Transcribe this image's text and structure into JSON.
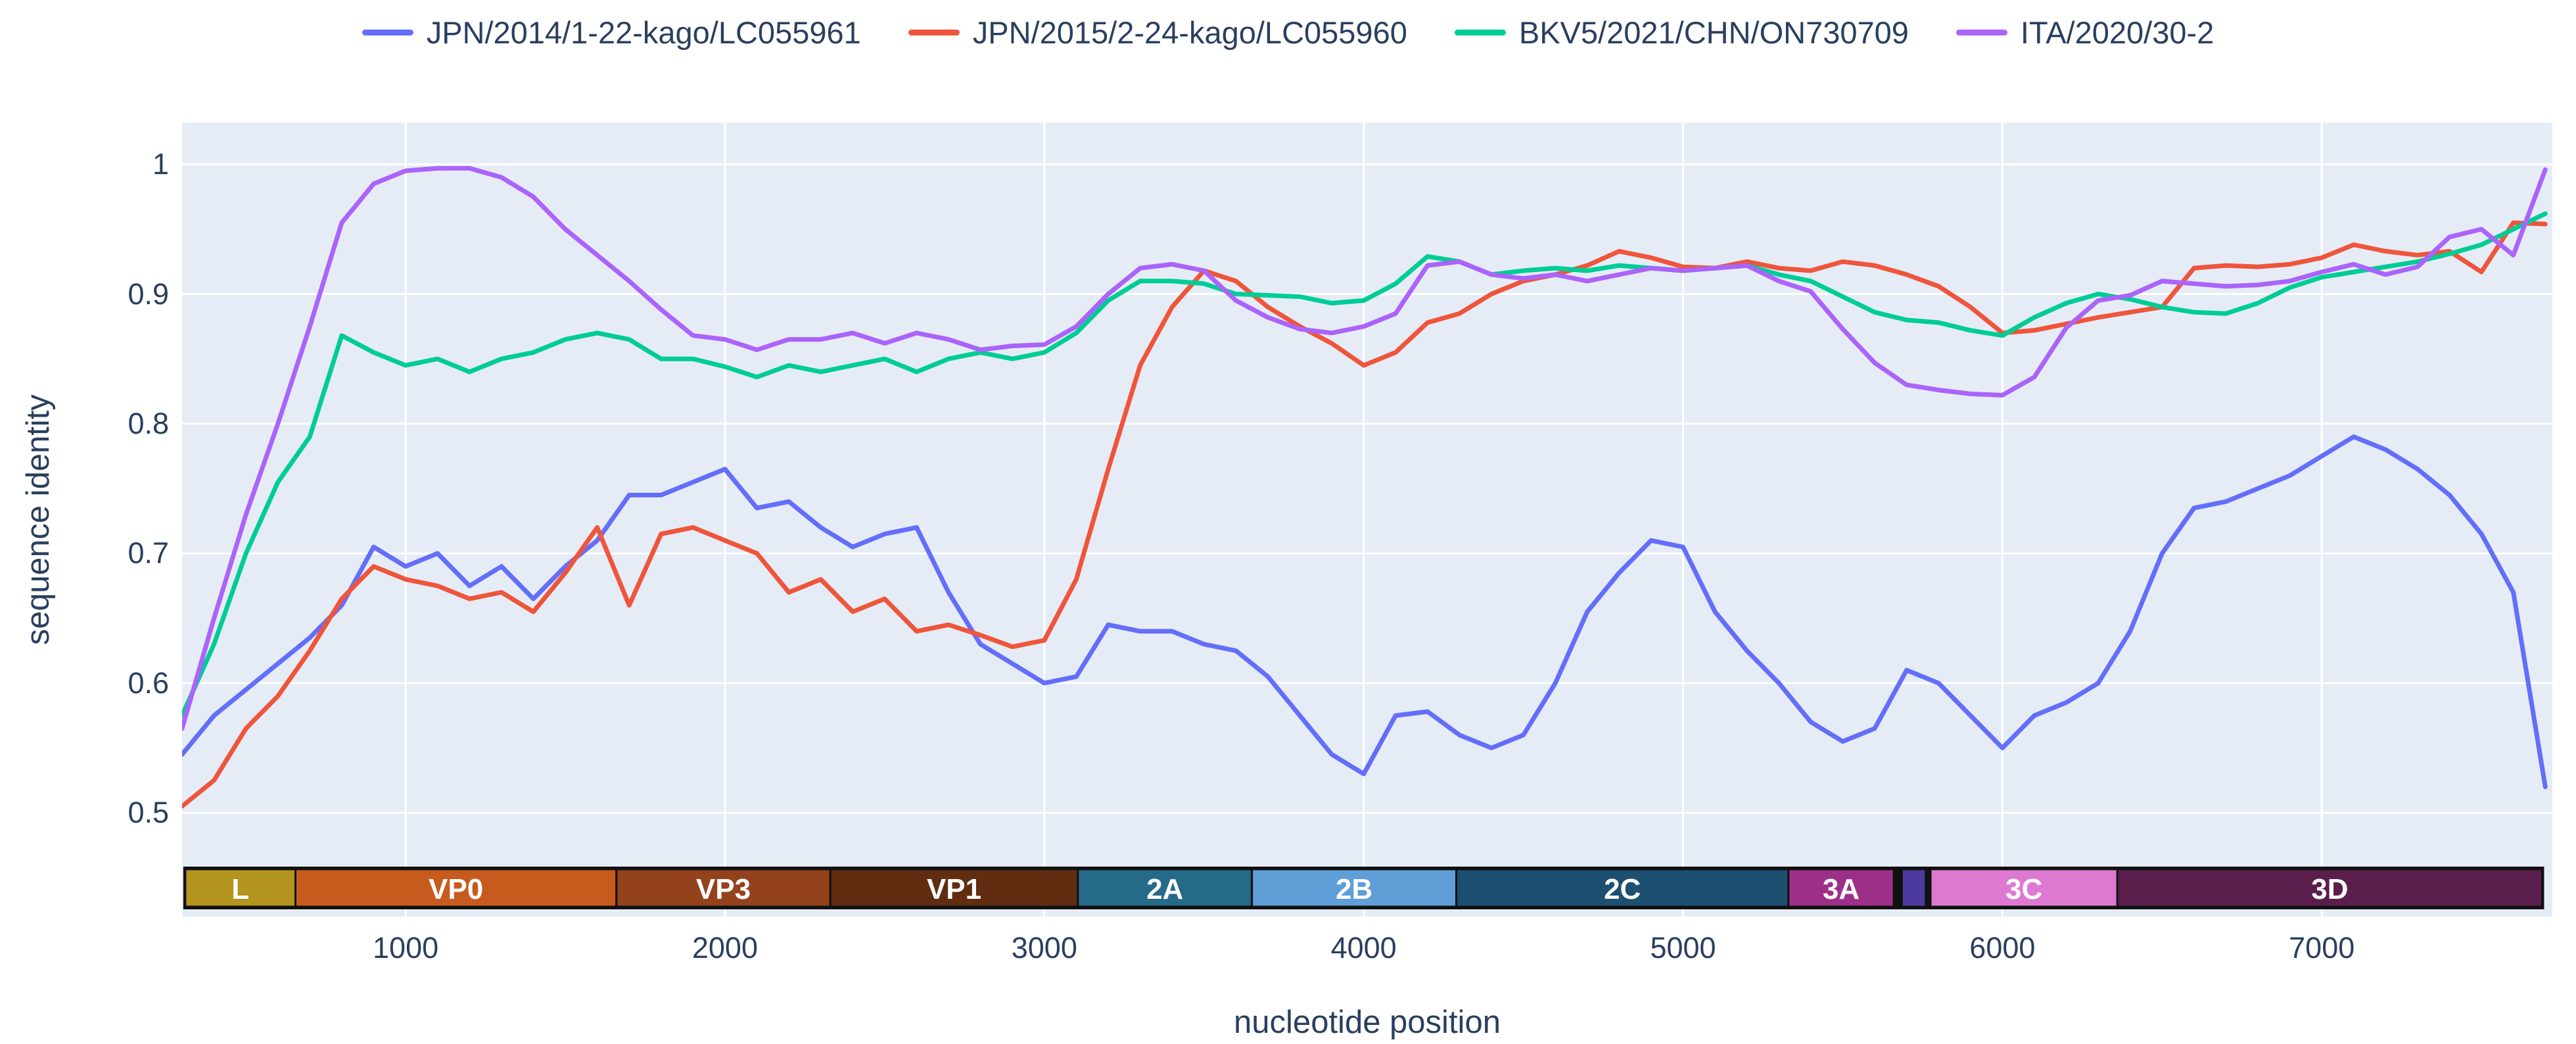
{
  "chart_data": {
    "type": "line",
    "title": "",
    "xlabel": "nucleotide position",
    "ylabel": "sequence identity",
    "x_ticks": [
      1000,
      2000,
      3000,
      4000,
      5000,
      6000,
      7000
    ],
    "y_ticks": [
      "1",
      "0.9",
      "0.8",
      "0.7",
      "0.6",
      "0.5"
    ],
    "x_range": [
      300,
      7722
    ],
    "y_visible_range": [
      0.42,
      1.032
    ],
    "grid": true,
    "grid_color": "#ffffff",
    "legend_position": "top-center",
    "plot_bg": "#e5ecf6",
    "text_color": "#2a3f5f",
    "x": [
      300,
      400,
      500,
      600,
      700,
      800,
      900,
      1000,
      1100,
      1200,
      1300,
      1400,
      1500,
      1600,
      1700,
      1800,
      1900,
      2000,
      2100,
      2200,
      2300,
      2400,
      2500,
      2600,
      2700,
      2800,
      2900,
      3000,
      3100,
      3200,
      3300,
      3400,
      3500,
      3600,
      3700,
      3800,
      3900,
      4000,
      4100,
      4200,
      4300,
      4400,
      4500,
      4600,
      4700,
      4800,
      4900,
      5000,
      5100,
      5200,
      5300,
      5400,
      5500,
      5600,
      5700,
      5800,
      5900,
      6000,
      6100,
      6200,
      6300,
      6400,
      6500,
      6600,
      6700,
      6800,
      6900,
      7000,
      7100,
      7200,
      7300,
      7400,
      7500,
      7600,
      7700
    ],
    "series": [
      {
        "name": "JPN/2014/1-22-kago/LC055961",
        "color": "#636efa",
        "values": [
          0.545,
          0.575,
          0.595,
          0.615,
          0.635,
          0.66,
          0.705,
          0.69,
          0.7,
          0.675,
          0.69,
          0.665,
          0.69,
          0.71,
          0.745,
          0.745,
          0.755,
          0.765,
          0.735,
          0.74,
          0.72,
          0.705,
          0.715,
          0.72,
          0.67,
          0.63,
          0.615,
          0.6,
          0.605,
          0.645,
          0.64,
          0.64,
          0.63,
          0.625,
          0.605,
          0.575,
          0.545,
          0.53,
          0.575,
          0.578,
          0.56,
          0.55,
          0.56,
          0.6,
          0.655,
          0.685,
          0.71,
          0.705,
          0.655,
          0.625,
          0.6,
          0.57,
          0.555,
          0.565,
          0.61,
          0.6,
          0.575,
          0.55,
          0.575,
          0.585,
          0.6,
          0.64,
          0.7,
          0.735,
          0.74,
          0.75,
          0.76,
          0.775,
          0.79,
          0.78,
          0.765,
          0.745,
          0.715,
          0.67,
          0.52
        ]
      },
      {
        "name": "JPN/2015/2-24-kago/LC055960",
        "color": "#ef553b",
        "values": [
          0.505,
          0.525,
          0.565,
          0.59,
          0.625,
          0.665,
          0.69,
          0.68,
          0.675,
          0.665,
          0.67,
          0.655,
          0.685,
          0.72,
          0.66,
          0.715,
          0.72,
          0.71,
          0.7,
          0.67,
          0.68,
          0.655,
          0.665,
          0.64,
          0.645,
          0.637,
          0.628,
          0.633,
          0.68,
          0.765,
          0.845,
          0.89,
          0.918,
          0.91,
          0.89,
          0.875,
          0.862,
          0.845,
          0.855,
          0.878,
          0.885,
          0.9,
          0.91,
          0.915,
          0.922,
          0.933,
          0.928,
          0.921,
          0.92,
          0.925,
          0.92,
          0.918,
          0.925,
          0.922,
          0.915,
          0.906,
          0.89,
          0.87,
          0.872,
          0.877,
          0.882,
          0.886,
          0.89,
          0.92,
          0.922,
          0.921,
          0.923,
          0.928,
          0.938,
          0.933,
          0.93,
          0.933,
          0.917,
          0.955,
          0.954
        ]
      },
      {
        "name": "BKV5/2021/CHN/ON730709",
        "color": "#00cc96",
        "values": [
          0.575,
          0.63,
          0.7,
          0.755,
          0.79,
          0.868,
          0.855,
          0.845,
          0.85,
          0.84,
          0.85,
          0.855,
          0.865,
          0.87,
          0.865,
          0.85,
          0.85,
          0.844,
          0.836,
          0.845,
          0.84,
          0.845,
          0.85,
          0.84,
          0.85,
          0.855,
          0.85,
          0.855,
          0.87,
          0.895,
          0.91,
          0.91,
          0.908,
          0.9,
          0.899,
          0.898,
          0.893,
          0.895,
          0.908,
          0.929,
          0.925,
          0.915,
          0.918,
          0.92,
          0.918,
          0.922,
          0.92,
          0.918,
          0.92,
          0.922,
          0.915,
          0.91,
          0.898,
          0.886,
          0.88,
          0.878,
          0.872,
          0.868,
          0.882,
          0.893,
          0.9,
          0.896,
          0.89,
          0.886,
          0.885,
          0.893,
          0.905,
          0.913,
          0.917,
          0.921,
          0.925,
          0.931,
          0.938,
          0.95,
          0.962
        ]
      },
      {
        "name": "ITA/2020/30-2",
        "color": "#ab63fa",
        "values": [
          0.565,
          0.65,
          0.73,
          0.8,
          0.875,
          0.955,
          0.985,
          0.995,
          0.997,
          0.997,
          0.99,
          0.975,
          0.95,
          0.93,
          0.91,
          0.888,
          0.868,
          0.865,
          0.857,
          0.865,
          0.865,
          0.87,
          0.862,
          0.87,
          0.865,
          0.857,
          0.86,
          0.861,
          0.875,
          0.9,
          0.92,
          0.923,
          0.918,
          0.895,
          0.882,
          0.873,
          0.87,
          0.875,
          0.885,
          0.922,
          0.925,
          0.915,
          0.912,
          0.915,
          0.91,
          0.915,
          0.92,
          0.918,
          0.92,
          0.922,
          0.91,
          0.902,
          0.873,
          0.847,
          0.83,
          0.826,
          0.823,
          0.822,
          0.836,
          0.874,
          0.895,
          0.899,
          0.91,
          0.908,
          0.906,
          0.907,
          0.91,
          0.917,
          0.923,
          0.915,
          0.921,
          0.944,
          0.95,
          0.93,
          0.996
        ]
      }
    ],
    "genome_annotation": [
      {
        "label": "L",
        "start": 310,
        "end": 655,
        "color": "#b3941f"
      },
      {
        "label": "VP0",
        "start": 655,
        "end": 1660,
        "color": "#c75b1e"
      },
      {
        "label": "VP3",
        "start": 1660,
        "end": 2330,
        "color": "#93421c"
      },
      {
        "label": "VP1",
        "start": 2330,
        "end": 3105,
        "color": "#602d10"
      },
      {
        "label": "2A",
        "start": 3105,
        "end": 3650,
        "color": "#256a87"
      },
      {
        "label": "2B",
        "start": 3650,
        "end": 4290,
        "color": "#5f9ed7"
      },
      {
        "label": "2C",
        "start": 4290,
        "end": 5330,
        "color": "#1d4f70"
      },
      {
        "label": "3A",
        "start": 5330,
        "end": 5660,
        "color": "#9c3088"
      },
      {
        "label": "",
        "start": 5685,
        "end": 5760,
        "color": "#4d3a9e"
      },
      {
        "label": "3C",
        "start": 5775,
        "end": 6360,
        "color": "#de79d2"
      },
      {
        "label": "3D",
        "start": 6360,
        "end": 7690,
        "color": "#5a1e4d"
      }
    ]
  }
}
